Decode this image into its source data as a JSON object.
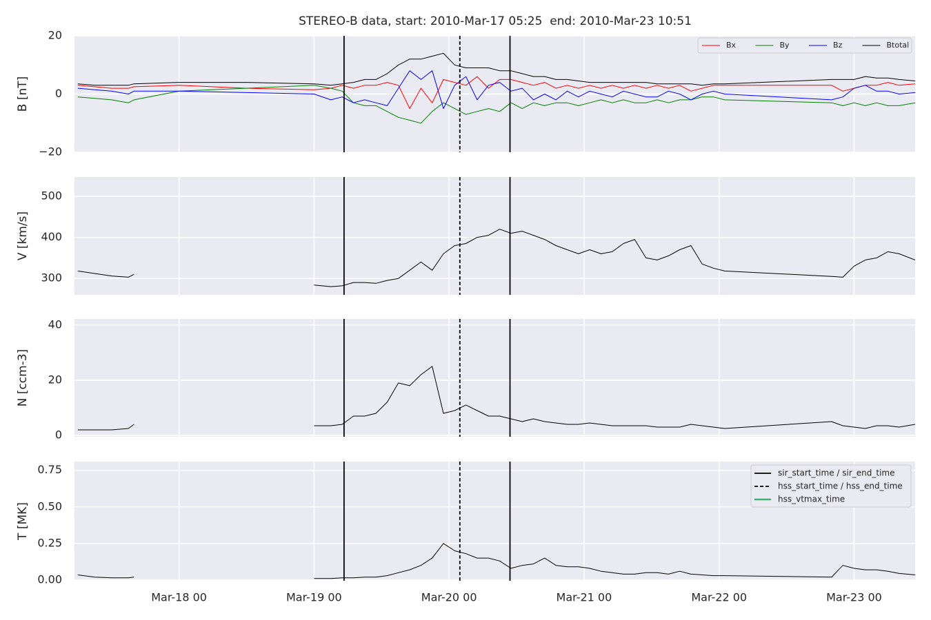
{
  "chart_data": [
    {
      "type": "line",
      "title": "STEREO-B data, start: 2010-Mar-17 05:25  end: 2010-Mar-23 10:51",
      "ylabel": "B [nT]",
      "xlim": [
        "2010-03-17T05:25",
        "2010-03-23T10:51"
      ],
      "ylim": [
        -20,
        20
      ],
      "yticks": [
        {
          "value": -20,
          "label": "−20"
        },
        0,
        20
      ],
      "grid": true,
      "legend": "upper right",
      "legend_layout": "row",
      "x": [
        "2010-03-17T06:00",
        "2010-03-17T09:00",
        "2010-03-17T12:00",
        "2010-03-17T15:00",
        "2010-03-17T16:00",
        "2010-03-18T00:00",
        "2010-03-18T12:00",
        "2010-03-19T00:00",
        "2010-03-19T03:00",
        "2010-03-19T05:00",
        "2010-03-19T07:00",
        "2010-03-19T09:00",
        "2010-03-19T11:00",
        "2010-03-19T13:00",
        "2010-03-19T15:00",
        "2010-03-19T17:00",
        "2010-03-19T19:00",
        "2010-03-19T21:00",
        "2010-03-19T23:00",
        "2010-03-20T01:00",
        "2010-03-20T03:00",
        "2010-03-20T05:00",
        "2010-03-20T07:00",
        "2010-03-20T09:00",
        "2010-03-20T11:00",
        "2010-03-20T13:00",
        "2010-03-20T15:00",
        "2010-03-20T17:00",
        "2010-03-20T19:00",
        "2010-03-20T21:00",
        "2010-03-20T23:00",
        "2010-03-21T01:00",
        "2010-03-21T03:00",
        "2010-03-21T05:00",
        "2010-03-21T07:00",
        "2010-03-21T09:00",
        "2010-03-21T11:00",
        "2010-03-21T13:00",
        "2010-03-21T15:00",
        "2010-03-21T17:00",
        "2010-03-21T19:00",
        "2010-03-21T21:00",
        "2010-03-21T23:00",
        "2010-03-22T01:00",
        "2010-03-22T20:00",
        "2010-03-22T22:00",
        "2010-03-23T00:00",
        "2010-03-23T02:00",
        "2010-03-23T04:00",
        "2010-03-23T06:00",
        "2010-03-23T08:00",
        "2010-03-23T10:51"
      ],
      "series": [
        {
          "name": "Bx",
          "color": "#ff0000",
          "values": [
            3,
            2.5,
            2,
            2,
            2.5,
            3,
            2,
            1.5,
            2,
            3,
            2,
            3,
            3,
            4,
            3,
            -5,
            2,
            -3,
            5,
            4,
            3,
            6,
            2,
            5,
            5,
            4,
            3,
            4,
            2,
            3,
            2,
            3,
            2,
            3,
            2,
            3,
            2,
            3,
            2,
            3,
            1,
            2,
            3,
            3,
            3,
            1,
            2,
            3,
            3,
            4,
            3,
            3.5
          ]
        },
        {
          "name": "By",
          "color": "#008000",
          "values": [
            -1,
            -1.5,
            -2,
            -3,
            -2,
            1,
            2,
            3,
            2,
            1,
            -3,
            -4,
            -4,
            -6,
            -8,
            -9,
            -10,
            -6,
            -3,
            -5,
            -7,
            -6,
            -5,
            -6,
            -3,
            -5,
            -3,
            -4,
            -3,
            -3,
            -4,
            -3,
            -2,
            -3,
            -2,
            -3,
            -3,
            -2,
            -3,
            -2,
            -2,
            -1,
            -1,
            -2,
            -3,
            -4,
            -3,
            -4,
            -3,
            -4,
            -4,
            -3
          ]
        },
        {
          "name": "Bz",
          "color": "#0000ff",
          "values": [
            2,
            1.5,
            1,
            0,
            1,
            1,
            0.5,
            0,
            -2,
            -1,
            -3,
            -2,
            -3,
            -4,
            2,
            8,
            5,
            8,
            -5,
            3,
            6,
            -2,
            3,
            4,
            1,
            2,
            -2,
            0,
            -2,
            1,
            -1,
            1,
            0,
            -1,
            1,
            0,
            -1,
            -1,
            1,
            0,
            -2,
            0,
            1,
            0,
            -2,
            -1,
            2,
            3,
            1,
            1,
            0,
            0.5
          ]
        },
        {
          "name": "Btotal",
          "color": "#000000",
          "values": [
            3.5,
            3,
            3,
            3,
            3.5,
            4,
            4,
            3.5,
            3,
            3.5,
            4,
            5,
            5,
            7,
            10,
            12,
            12,
            13,
            14,
            10,
            9,
            9,
            9,
            8,
            8,
            7,
            6,
            6,
            5,
            5,
            4.5,
            4,
            4,
            4,
            4,
            4,
            4,
            3.5,
            3.5,
            3.5,
            3.5,
            3,
            3.5,
            3.5,
            5,
            5,
            5,
            6,
            5.5,
            5.5,
            5,
            4.5
          ]
        }
      ]
    },
    {
      "type": "line",
      "ylabel": "V [km/s]",
      "xlim": [
        "2010-03-17T05:25",
        "2010-03-23T10:51"
      ],
      "ylim": [
        260,
        547
      ],
      "yticks": [
        300,
        400,
        500
      ],
      "grid": true,
      "x": [
        "2010-03-17T06:00",
        "2010-03-17T09:00",
        "2010-03-17T12:00",
        "2010-03-17T15:00",
        "2010-03-17T16:00",
        "2010-03-18T00:00",
        "2010-03-18T12:00",
        "2010-03-19T00:00",
        "2010-03-19T03:00",
        "2010-03-19T05:00",
        "2010-03-19T07:00",
        "2010-03-19T09:00",
        "2010-03-19T11:00",
        "2010-03-19T13:00",
        "2010-03-19T15:00",
        "2010-03-19T17:00",
        "2010-03-19T19:00",
        "2010-03-19T21:00",
        "2010-03-19T23:00",
        "2010-03-20T01:00",
        "2010-03-20T03:00",
        "2010-03-20T05:00",
        "2010-03-20T07:00",
        "2010-03-20T09:00",
        "2010-03-20T11:00",
        "2010-03-20T13:00",
        "2010-03-20T15:00",
        "2010-03-20T17:00",
        "2010-03-20T19:00",
        "2010-03-20T21:00",
        "2010-03-20T23:00",
        "2010-03-21T01:00",
        "2010-03-21T03:00",
        "2010-03-21T05:00",
        "2010-03-21T07:00",
        "2010-03-21T09:00",
        "2010-03-21T11:00",
        "2010-03-21T13:00",
        "2010-03-21T15:00",
        "2010-03-21T17:00",
        "2010-03-21T19:00",
        "2010-03-21T21:00",
        "2010-03-21T23:00",
        "2010-03-22T01:00",
        "2010-03-22T20:00",
        "2010-03-22T22:00",
        "2010-03-23T00:00",
        "2010-03-23T02:00",
        "2010-03-23T04:00",
        "2010-03-23T06:00",
        "2010-03-23T08:00",
        "2010-03-23T10:51"
      ],
      "series": [
        {
          "name": "V",
          "color": "#000000",
          "values": [
            318,
            312,
            306,
            303,
            310,
            null,
            null,
            284,
            280,
            282,
            290,
            290,
            288,
            295,
            300,
            320,
            340,
            320,
            360,
            380,
            385,
            400,
            405,
            420,
            410,
            415,
            405,
            395,
            380,
            370,
            360,
            370,
            360,
            365,
            385,
            395,
            350,
            345,
            355,
            370,
            380,
            335,
            325,
            318,
            305,
            303,
            330,
            345,
            350,
            365,
            360,
            345
          ]
        }
      ]
    },
    {
      "type": "line",
      "ylabel": "N [ccm-3]",
      "xlim": [
        "2010-03-17T05:25",
        "2010-03-23T10:51"
      ],
      "ylim": [
        -0.5,
        42.2
      ],
      "yticks": [
        0,
        20,
        40
      ],
      "grid": true,
      "x": [
        "2010-03-17T06:00",
        "2010-03-17T09:00",
        "2010-03-17T12:00",
        "2010-03-17T15:00",
        "2010-03-17T16:00",
        "2010-03-18T00:00",
        "2010-03-18T12:00",
        "2010-03-19T00:00",
        "2010-03-19T03:00",
        "2010-03-19T05:00",
        "2010-03-19T07:00",
        "2010-03-19T09:00",
        "2010-03-19T11:00",
        "2010-03-19T13:00",
        "2010-03-19T15:00",
        "2010-03-19T17:00",
        "2010-03-19T19:00",
        "2010-03-19T21:00",
        "2010-03-19T23:00",
        "2010-03-20T01:00",
        "2010-03-20T03:00",
        "2010-03-20T05:00",
        "2010-03-20T07:00",
        "2010-03-20T09:00",
        "2010-03-20T11:00",
        "2010-03-20T13:00",
        "2010-03-20T15:00",
        "2010-03-20T17:00",
        "2010-03-20T19:00",
        "2010-03-20T21:00",
        "2010-03-20T23:00",
        "2010-03-21T01:00",
        "2010-03-21T03:00",
        "2010-03-21T05:00",
        "2010-03-21T07:00",
        "2010-03-21T09:00",
        "2010-03-21T11:00",
        "2010-03-21T13:00",
        "2010-03-21T15:00",
        "2010-03-21T17:00",
        "2010-03-21T19:00",
        "2010-03-21T21:00",
        "2010-03-21T23:00",
        "2010-03-22T01:00",
        "2010-03-22T20:00",
        "2010-03-22T22:00",
        "2010-03-23T00:00",
        "2010-03-23T02:00",
        "2010-03-23T04:00",
        "2010-03-23T06:00",
        "2010-03-23T08:00",
        "2010-03-23T10:51"
      ],
      "series": [
        {
          "name": "N",
          "color": "#000000",
          "values": [
            2,
            2,
            2,
            2.5,
            4,
            null,
            null,
            3.5,
            3.5,
            4,
            7,
            7,
            8,
            12,
            19,
            18,
            22,
            25,
            8,
            9,
            11,
            9,
            7,
            7,
            6,
            5,
            6,
            5,
            4.5,
            4,
            4,
            4.5,
            4,
            3.5,
            3.5,
            3.5,
            3.5,
            3,
            3,
            3,
            4,
            3.5,
            3,
            2.5,
            5,
            3.5,
            3,
            2.5,
            3.5,
            3.5,
            3,
            4
          ]
        }
      ]
    },
    {
      "type": "line",
      "ylabel": "T [MK]",
      "xlim": [
        "2010-03-17T05:25",
        "2010-03-23T10:51"
      ],
      "ylim": [
        -0.005,
        0.81
      ],
      "yticks": [
        {
          "value": 0,
          "label": "0.00"
        },
        0.25,
        {
          "value": 0.5,
          "label": "0.50"
        },
        0.75
      ],
      "grid": true,
      "legend": "upper right",
      "xticks": [
        {
          "value": "2010-03-18T00:00",
          "label": "Mar-18 00"
        },
        {
          "value": "2010-03-19T00:00",
          "label": "Mar-19 00"
        },
        {
          "value": "2010-03-20T00:00",
          "label": "Mar-20 00"
        },
        {
          "value": "2010-03-21T00:00",
          "label": "Mar-21 00"
        },
        {
          "value": "2010-03-22T00:00",
          "label": "Mar-22 00"
        },
        {
          "value": "2010-03-23T00:00",
          "label": "Mar-23 00"
        }
      ],
      "events": [
        {
          "name": "sir_start_time / sir_end_time",
          "color": "#000000",
          "dash": false,
          "times": [
            "2010-03-19T05:20",
            "2010-03-20T10:50"
          ]
        },
        {
          "name": "hss_start_time / hss_end_time",
          "color": "#000000",
          "dash": true,
          "times": [
            "2010-03-20T01:55"
          ]
        },
        {
          "name": "hss_vtmax_time",
          "color": "#3cb371",
          "dash": false,
          "times": []
        }
      ],
      "x": [
        "2010-03-17T06:00",
        "2010-03-17T09:00",
        "2010-03-17T12:00",
        "2010-03-17T15:00",
        "2010-03-17T16:00",
        "2010-03-18T00:00",
        "2010-03-18T12:00",
        "2010-03-19T00:00",
        "2010-03-19T03:00",
        "2010-03-19T05:00",
        "2010-03-19T07:00",
        "2010-03-19T09:00",
        "2010-03-19T11:00",
        "2010-03-19T13:00",
        "2010-03-19T15:00",
        "2010-03-19T17:00",
        "2010-03-19T19:00",
        "2010-03-19T21:00",
        "2010-03-19T23:00",
        "2010-03-20T01:00",
        "2010-03-20T03:00",
        "2010-03-20T05:00",
        "2010-03-20T07:00",
        "2010-03-20T09:00",
        "2010-03-20T11:00",
        "2010-03-20T13:00",
        "2010-03-20T15:00",
        "2010-03-20T17:00",
        "2010-03-20T19:00",
        "2010-03-20T21:00",
        "2010-03-20T23:00",
        "2010-03-21T01:00",
        "2010-03-21T03:00",
        "2010-03-21T05:00",
        "2010-03-21T07:00",
        "2010-03-21T09:00",
        "2010-03-21T11:00",
        "2010-03-21T13:00",
        "2010-03-21T15:00",
        "2010-03-21T17:00",
        "2010-03-21T19:00",
        "2010-03-21T21:00",
        "2010-03-21T23:00",
        "2010-03-22T01:00",
        "2010-03-22T20:00",
        "2010-03-22T22:00",
        "2010-03-23T00:00",
        "2010-03-23T02:00",
        "2010-03-23T04:00",
        "2010-03-23T06:00",
        "2010-03-23T08:00",
        "2010-03-23T10:51"
      ],
      "series": [
        {
          "name": "T",
          "color": "#000000",
          "values": [
            0.035,
            0.02,
            0.015,
            0.015,
            0.02,
            null,
            null,
            0.01,
            0.01,
            0.015,
            0.015,
            0.02,
            0.02,
            0.03,
            0.05,
            0.07,
            0.1,
            0.15,
            0.25,
            0.2,
            0.18,
            0.15,
            0.15,
            0.13,
            0.08,
            0.1,
            0.11,
            0.15,
            0.1,
            0.09,
            0.09,
            0.08,
            0.06,
            0.05,
            0.04,
            0.04,
            0.05,
            0.05,
            0.04,
            0.06,
            0.04,
            0.035,
            0.03,
            0.03,
            0.02,
            0.1,
            0.08,
            0.07,
            0.07,
            0.06,
            0.045,
            0.035
          ]
        }
      ]
    }
  ]
}
